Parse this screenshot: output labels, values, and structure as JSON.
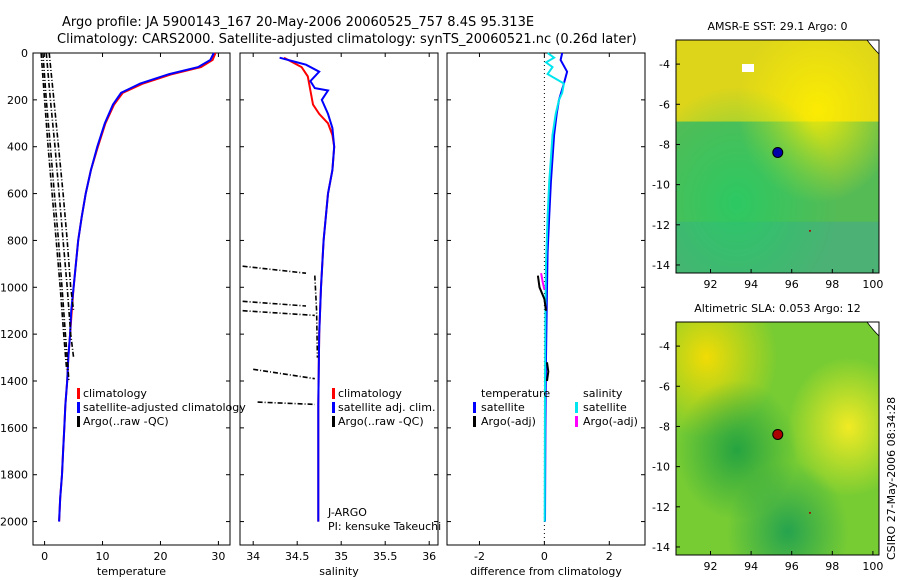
{
  "title": {
    "line1": "Argo profile: JA 5900143_167 20-May-2006 20060525_757 8.4S 95.313E",
    "line2": "Climatology: CARS2000. Satellite-adjusted climatology: synTS_20060521.nc (0.26d later)"
  },
  "side_label": "CSIRO 27-May-2006 08:34:28",
  "float_info": {
    "line1": "J-ARGO",
    "line2": "PI: kensuke Takeuchi"
  },
  "colors": {
    "climatology": "#ff0000",
    "satellite": "#0000ff",
    "argo": "#000000",
    "diff_sat_salinity": "#00e5ee",
    "diff_adj_salinity": "#ff00ff"
  },
  "chart_data": [
    {
      "id": "temperature",
      "type": "line",
      "xlabel": "temperature",
      "xlim": [
        -2,
        32
      ],
      "ylim": [
        2100,
        0
      ],
      "xticks": [
        0,
        10,
        20,
        30
      ],
      "yticks": [
        0,
        200,
        400,
        600,
        800,
        1000,
        1200,
        1400,
        1600,
        1800,
        2000
      ],
      "legend": [
        "climatology",
        "satellite-adjusted climatology",
        "Argo(..raw -QC)"
      ],
      "series": [
        {
          "name": "climatology",
          "color": "#ff0000",
          "points": [
            [
              29.5,
              0
            ],
            [
              29.0,
              30
            ],
            [
              27.0,
              60
            ],
            [
              22.0,
              90
            ],
            [
              17.0,
              130
            ],
            [
              13.5,
              170
            ],
            [
              12.0,
              220
            ],
            [
              10.5,
              300
            ],
            [
              9.2,
              400
            ],
            [
              8.0,
              500
            ],
            [
              7.1,
              600
            ],
            [
              6.4,
              700
            ],
            [
              5.8,
              800
            ],
            [
              5.4,
              900
            ],
            [
              5.0,
              1000
            ],
            [
              4.7,
              1100
            ],
            [
              4.4,
              1200
            ],
            [
              4.1,
              1300
            ],
            [
              3.9,
              1400
            ],
            [
              3.6,
              1500
            ],
            [
              3.4,
              1600
            ],
            [
              3.2,
              1700
            ],
            [
              3.0,
              1800
            ],
            [
              2.7,
              1900
            ],
            [
              2.5,
              2000
            ]
          ]
        },
        {
          "name": "satellite-adjusted climatology",
          "color": "#0000ff",
          "points": [
            [
              29.2,
              0
            ],
            [
              28.6,
              30
            ],
            [
              26.5,
              60
            ],
            [
              21.5,
              90
            ],
            [
              16.5,
              130
            ],
            [
              13.2,
              170
            ],
            [
              11.8,
              220
            ],
            [
              10.4,
              300
            ],
            [
              9.1,
              400
            ],
            [
              8.0,
              500
            ],
            [
              7.1,
              600
            ],
            [
              6.4,
              700
            ],
            [
              5.8,
              800
            ],
            [
              5.4,
              900
            ],
            [
              5.0,
              1000
            ],
            [
              4.6,
              1100
            ],
            [
              4.4,
              1200
            ],
            [
              4.1,
              1300
            ],
            [
              3.9,
              1400
            ],
            [
              3.6,
              1500
            ],
            [
              3.4,
              1600
            ],
            [
              3.2,
              1700
            ],
            [
              3.0,
              1800
            ],
            [
              2.7,
              1900
            ],
            [
              2.5,
              2000
            ]
          ]
        },
        {
          "name": "Argo(..raw -QC)",
          "color": "#000000",
          "dashed": true,
          "points": [
            [
              -0.3,
              0
            ],
            [
              0.3,
              200
            ],
            [
              1.0,
              400
            ],
            [
              1.7,
              600
            ],
            [
              2.4,
              800
            ],
            [
              3.0,
              1000
            ],
            [
              3.6,
              1200
            ],
            [
              4.2,
              1400
            ]
          ]
        },
        {
          "name": "Argo(..raw -QC)",
          "color": "#000000",
          "dashed": true,
          "points": [
            [
              0.3,
              0
            ],
            [
              1.0,
              200
            ],
            [
              1.8,
              400
            ],
            [
              2.5,
              600
            ],
            [
              3.2,
              800
            ],
            [
              3.9,
              1000
            ],
            [
              4.5,
              1200
            ],
            [
              5.0,
              1300
            ]
          ]
        },
        {
          "name": "Argo(..raw -QC)",
          "color": "#000000",
          "dashed": true,
          "points": [
            [
              0.8,
              0
            ],
            [
              1.6,
              200
            ],
            [
              2.4,
              400
            ],
            [
              3.2,
              600
            ],
            [
              3.9,
              800
            ],
            [
              4.5,
              1000
            ],
            [
              5.0,
              1100
            ]
          ]
        },
        {
          "name": "Argo(..raw -QC)",
          "color": "#000000",
          "dashed": true,
          "points": [
            [
              -0.6,
              0
            ],
            [
              0.0,
              200
            ],
            [
              0.6,
              400
            ],
            [
              1.3,
              600
            ],
            [
              2.0,
              800
            ],
            [
              2.7,
              1000
            ],
            [
              3.3,
              1200
            ],
            [
              3.8,
              1350
            ]
          ]
        }
      ]
    },
    {
      "id": "salinity",
      "type": "line",
      "xlabel": "salinity",
      "xlim": [
        33.85,
        36.1
      ],
      "ylim": [
        2100,
        0
      ],
      "xticks": [
        34,
        34.5,
        35,
        35.5,
        36
      ],
      "yticks": [
        0,
        200,
        400,
        600,
        800,
        1000,
        1200,
        1400,
        1600,
        1800,
        2000
      ],
      "legend": [
        "climatology",
        "satellite adj. clim.",
        "Argo(..raw -QC)"
      ],
      "series": [
        {
          "name": "climatology",
          "color": "#ff0000",
          "points": [
            [
              34.35,
              20
            ],
            [
              34.45,
              40
            ],
            [
              34.55,
              60
            ],
            [
              34.62,
              100
            ],
            [
              34.65,
              160
            ],
            [
              34.68,
              220
            ],
            [
              34.75,
              260
            ],
            [
              34.85,
              300
            ],
            [
              34.9,
              350
            ],
            [
              34.92,
              400
            ],
            [
              34.9,
              500
            ],
            [
              34.85,
              600
            ],
            [
              34.8,
              800
            ],
            [
              34.77,
              1000
            ],
            [
              34.75,
              1200
            ],
            [
              34.74,
              1500
            ],
            [
              34.74,
              2000
            ]
          ]
        },
        {
          "name": "satellite adj. clim.",
          "color": "#0000ff",
          "points": [
            [
              34.3,
              20
            ],
            [
              34.5,
              40
            ],
            [
              34.6,
              50
            ],
            [
              34.75,
              80
            ],
            [
              34.65,
              120
            ],
            [
              34.7,
              150
            ],
            [
              34.85,
              160
            ],
            [
              34.78,
              200
            ],
            [
              34.85,
              260
            ],
            [
              34.9,
              320
            ],
            [
              34.92,
              400
            ],
            [
              34.9,
              500
            ],
            [
              34.85,
              600
            ],
            [
              34.8,
              800
            ],
            [
              34.77,
              1000
            ],
            [
              34.75,
              1200
            ],
            [
              34.74,
              1500
            ],
            [
              34.74,
              2000
            ]
          ]
        },
        {
          "name": "Argo(..raw -QC)",
          "color": "#000000",
          "dashed": true,
          "points": [
            [
              33.88,
              910
            ],
            [
              34.6,
              940
            ]
          ]
        },
        {
          "name": "Argo(..raw -QC)",
          "color": "#000000",
          "dashed": true,
          "points": [
            [
              33.88,
              1060
            ],
            [
              34.6,
              1080
            ]
          ]
        },
        {
          "name": "Argo(..raw -QC)",
          "color": "#000000",
          "dashed": true,
          "points": [
            [
              33.88,
              1100
            ],
            [
              34.7,
              1120
            ]
          ]
        },
        {
          "name": "Argo(..raw -QC)",
          "color": "#000000",
          "dashed": true,
          "points": [
            [
              34.0,
              1350
            ],
            [
              34.7,
              1390
            ]
          ]
        },
        {
          "name": "Argo(..raw -QC)",
          "color": "#000000",
          "dashed": true,
          "points": [
            [
              34.05,
              1490
            ],
            [
              34.7,
              1500
            ]
          ]
        },
        {
          "name": "Argo(..raw -QC)",
          "color": "#000000",
          "dashed": true,
          "points": [
            [
              34.7,
              950
            ],
            [
              34.72,
              1100
            ],
            [
              34.73,
              1300
            ]
          ]
        }
      ]
    },
    {
      "id": "difference",
      "type": "line",
      "xlabel": "difference from climatology",
      "xlim": [
        -3,
        3.1
      ],
      "ylim": [
        2100,
        0
      ],
      "xticks": [
        -2,
        0,
        2
      ],
      "yticks": [
        0,
        200,
        400,
        600,
        800,
        1000,
        1200,
        1400,
        1600,
        1800,
        2000
      ],
      "legend": {
        "temperature": [
          "satellite",
          "Argo(-adj)"
        ],
        "salinity": [
          "satellite",
          "Argo(-adj)"
        ]
      },
      "legend_headers": [
        "temperature",
        "salinity"
      ],
      "zero_line": true,
      "series": [
        {
          "name": "temperature satellite",
          "color": "#0000ff",
          "points": [
            [
              0.55,
              0
            ],
            [
              0.5,
              30
            ],
            [
              0.7,
              80
            ],
            [
              0.6,
              130
            ],
            [
              0.45,
              200
            ],
            [
              0.38,
              260
            ],
            [
              0.3,
              350
            ],
            [
              0.25,
              450
            ],
            [
              0.2,
              550
            ],
            [
              0.15,
              700
            ],
            [
              0.1,
              850
            ],
            [
              0.08,
              1000
            ],
            [
              0.05,
              1300
            ],
            [
              0.03,
              1600
            ],
            [
              0.02,
              2000
            ]
          ]
        },
        {
          "name": "salinity satellite",
          "color": "#00e5ee",
          "points": [
            [
              0.1,
              0
            ],
            [
              0.3,
              20
            ],
            [
              0.05,
              40
            ],
            [
              0.25,
              60
            ],
            [
              0.1,
              90
            ],
            [
              0.6,
              130
            ],
            [
              0.55,
              170
            ],
            [
              0.45,
              200
            ],
            [
              0.35,
              260
            ],
            [
              0.25,
              350
            ],
            [
              0.2,
              450
            ],
            [
              0.15,
              550
            ],
            [
              0.1,
              700
            ],
            [
              0.05,
              900
            ],
            [
              0.03,
              1100
            ],
            [
              0.02,
              1400
            ],
            [
              0.01,
              2000
            ]
          ]
        },
        {
          "name": "temperature Argo(-adj)",
          "color": "#000000",
          "points": [
            [
              -0.2,
              950
            ],
            [
              -0.15,
              1000
            ],
            [
              0.0,
              1050
            ],
            [
              0.05,
              1100
            ]
          ]
        },
        {
          "name": "salinity Argo(-adj)",
          "color": "#ff00ff",
          "points": [
            [
              -0.1,
              940
            ],
            [
              -0.05,
              980
            ],
            [
              0.0,
              1010
            ]
          ]
        },
        {
          "name": "temperature Argo(-adj) lower",
          "color": "#000000",
          "points": [
            [
              0.08,
              1320
            ],
            [
              0.12,
              1360
            ],
            [
              0.08,
              1400
            ]
          ]
        }
      ]
    },
    {
      "id": "sst_map",
      "type": "heatmap",
      "title": "AMSR-E SST: 29.1 Argo: 0",
      "xlim": [
        90.3,
        100.3
      ],
      "ylim": [
        -14.4,
        -2.8
      ],
      "xticks": [
        92,
        94,
        96,
        98,
        100
      ],
      "yticks": [
        -4,
        -6,
        -8,
        -10,
        -12,
        -14
      ],
      "float_position": [
        95.313,
        -8.4
      ],
      "float_color": "#0000aa",
      "legend": "none"
    },
    {
      "id": "sla_map",
      "type": "heatmap",
      "title": "Altimetric SLA: 0.053 Argo: 12",
      "xlim": [
        90.3,
        100.3
      ],
      "ylim": [
        -14.4,
        -2.8
      ],
      "xticks": [
        92,
        94,
        96,
        98,
        100
      ],
      "yticks": [
        -4,
        -6,
        -8,
        -10,
        -12,
        -14
      ],
      "float_position": [
        95.313,
        -8.4
      ],
      "float_color": "#aa0000",
      "legend": "none"
    }
  ]
}
